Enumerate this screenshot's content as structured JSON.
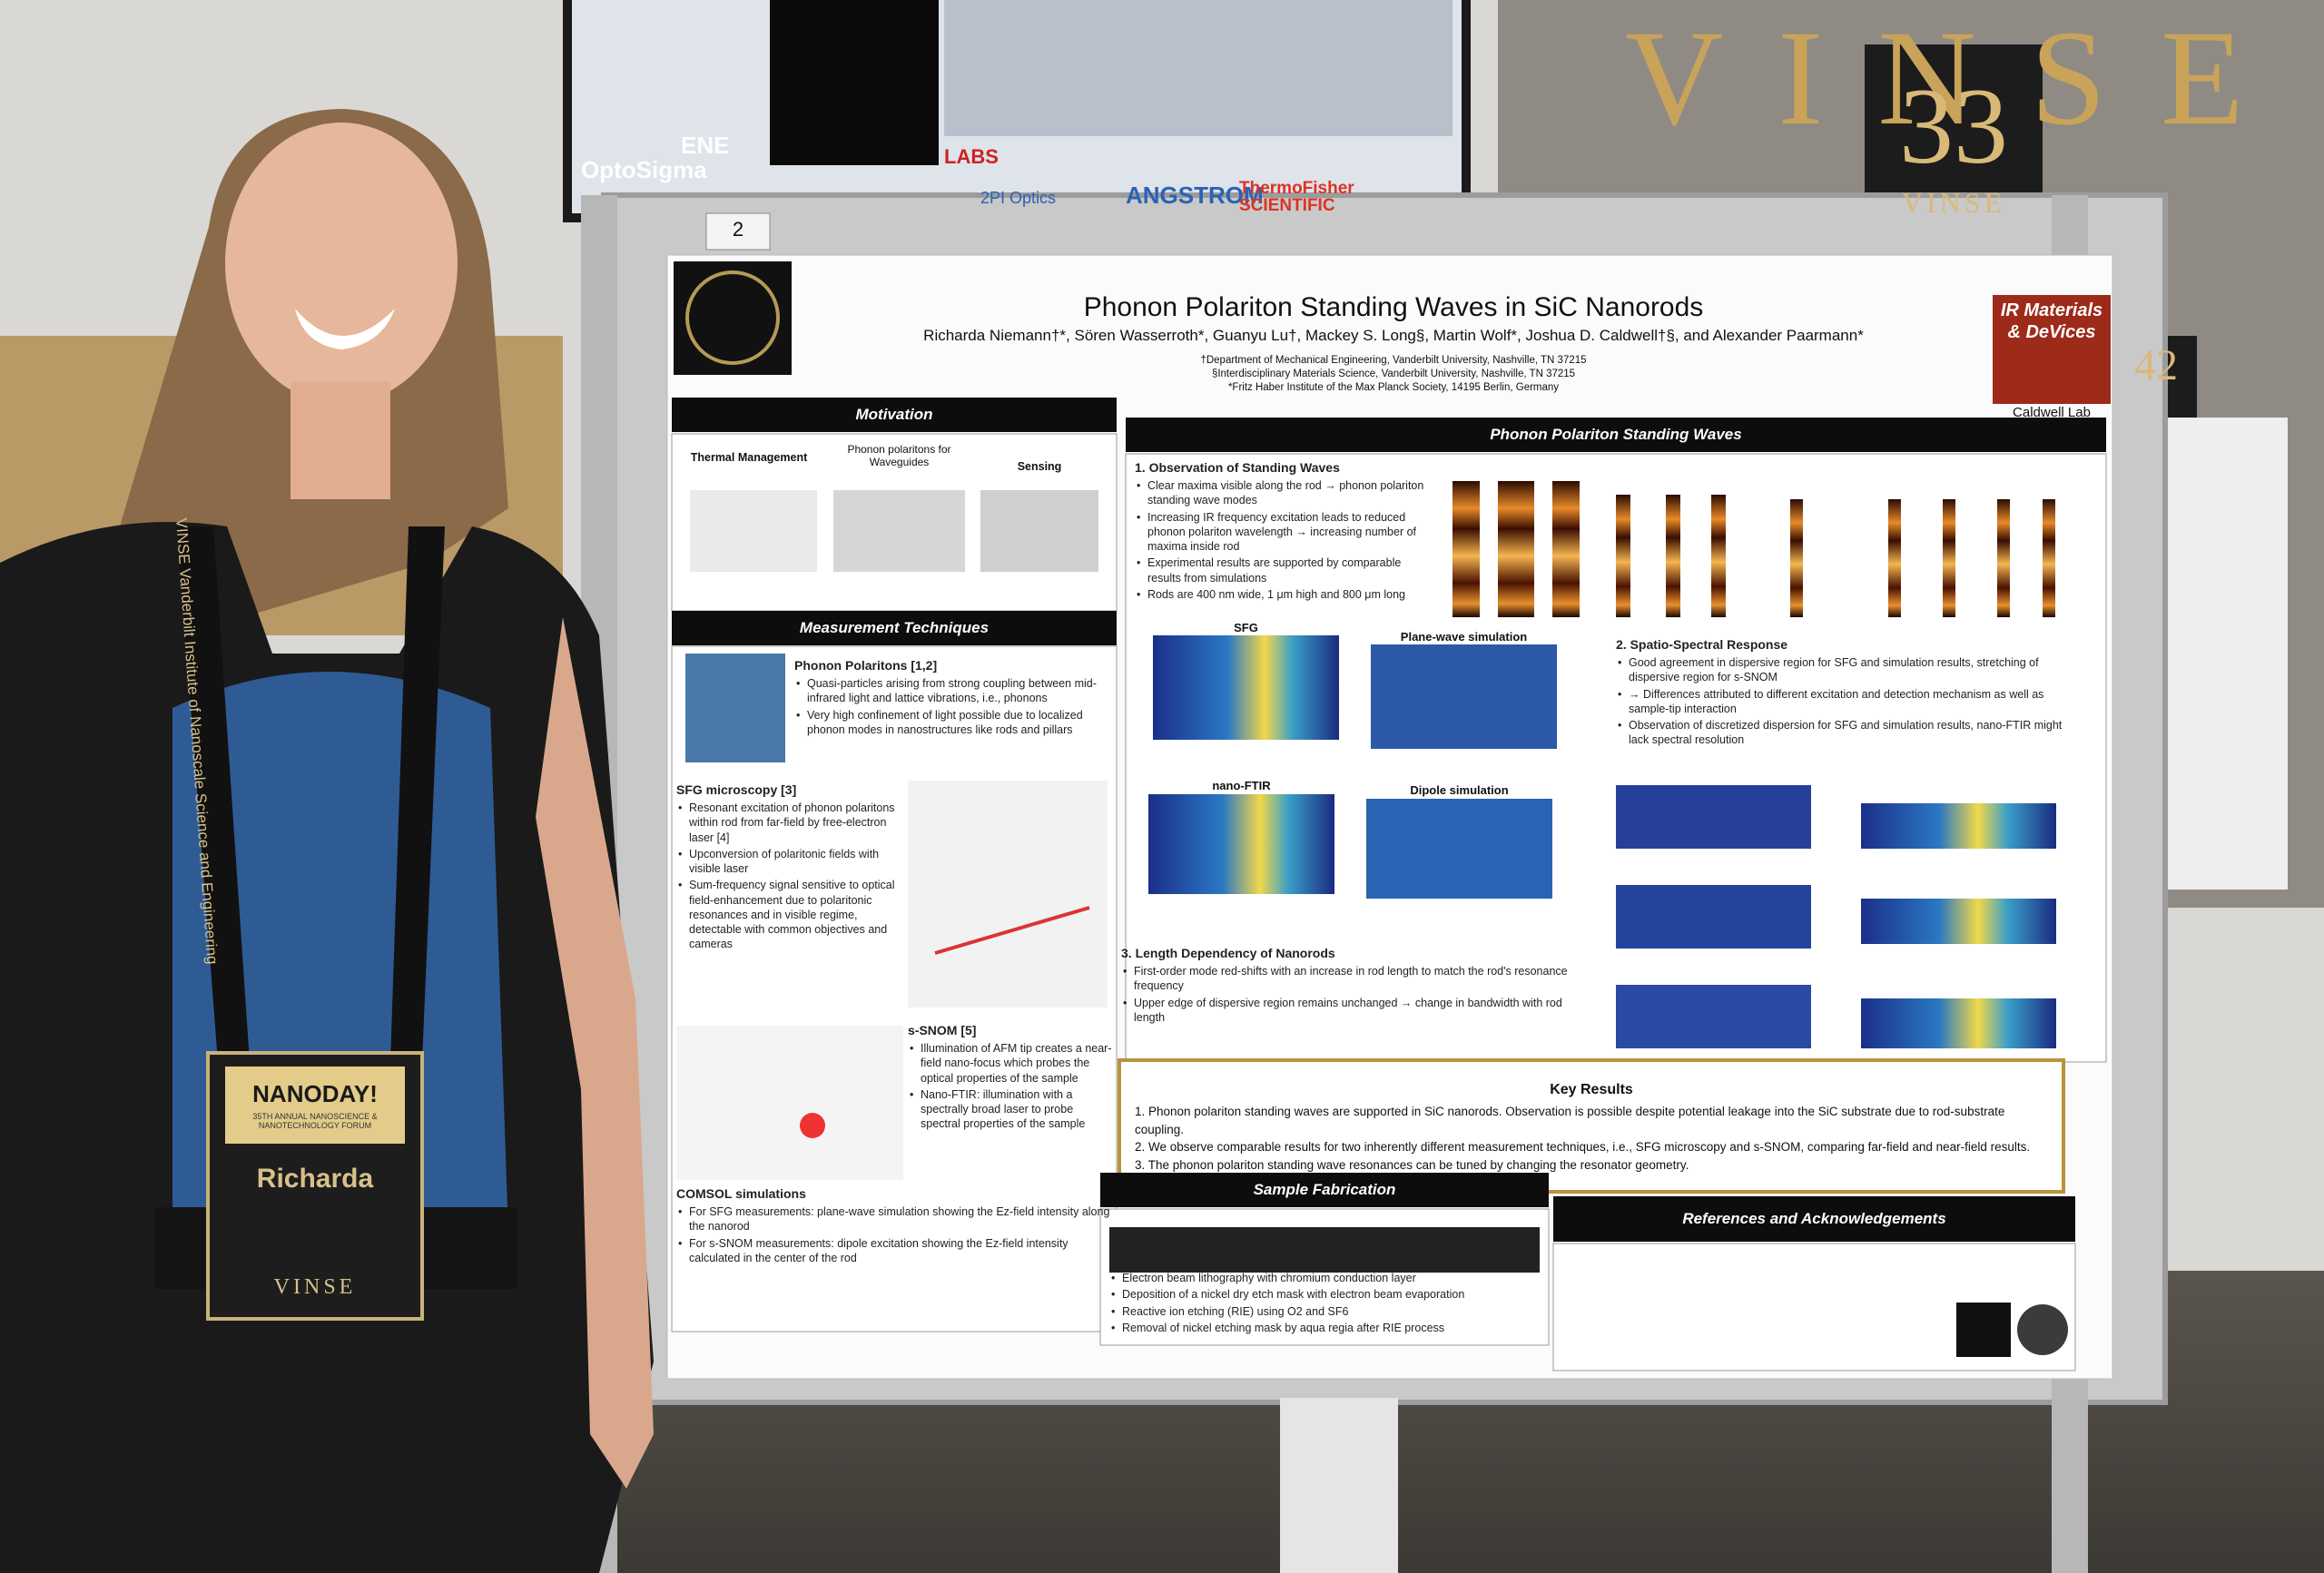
{
  "background": {
    "screen_brands": [
      "OptoSigma",
      "ENE",
      "LABS",
      "2PI Optics",
      "ANGSTROM",
      "ThermoFisher SCIENTIFIC"
    ],
    "wall_sign": "VINSE",
    "booth_number": "33",
    "booth_label": "VINSE",
    "side_booth": "42"
  },
  "poster": {
    "board_number": "2",
    "title": "Phonon Polariton Standing Waves in SiC Nanorods",
    "authors": "Richarda Niemann†*, Sören Wasserroth*, Guanyu Lu†, Mackey S. Long§, Martin Wolf*, Joshua D. Caldwell†§, and Alexander Paarmann*",
    "affiliations": [
      "†Department of Mechanical Engineering, Vanderbilt University, Nashville, TN 37215",
      "§Interdisciplinary Materials Science, Vanderbilt University, Nashville, TN 37215",
      "*Fritz Haber Institute of the Max Planck Society, 14195 Berlin, Germany"
    ],
    "lab_logo": "IR Materials & DeVices",
    "lab": "Caldwell Lab",
    "motivation": {
      "heading": "Motivation",
      "labels": [
        "Thermal Management",
        "Phonon polaritons for Waveguides",
        "Sensing"
      ]
    },
    "techniques": {
      "heading": "Measurement Techniques",
      "blocks": [
        {
          "title": "Phonon Polaritons [1,2]",
          "items": [
            "Quasi-particles arising from strong coupling between mid-infrared light and lattice vibrations, i.e., phonons",
            "Very high confinement of light possible due to localized phonon modes in nanostructures like rods and pillars"
          ]
        },
        {
          "title": "SFG microscopy [3]",
          "items": [
            "Resonant excitation of phonon polaritons within rod from far-field by free-electron laser [4]",
            "Upconversion of polaritonic fields with visible laser",
            "Sum-frequency signal sensitive to optical field-enhancement due to polaritonic resonances and in visible regime, detectable with common objectives and cameras"
          ]
        },
        {
          "title": "s-SNOM [5]",
          "items": [
            "Illumination of AFM tip creates a near-field nano-focus which probes the optical properties of the sample",
            "Nano-FTIR: illumination with a spectrally broad laser to probe spectral properties of the sample"
          ]
        },
        {
          "title": "COMSOL simulations",
          "items": [
            "For SFG measurements: plane-wave simulation showing the Ez-field intensity along the nanorod",
            "For s-SNOM measurements: dipole excitation showing the Ez-field intensity calculated in the center of the rod"
          ]
        }
      ]
    },
    "standing": {
      "heading": "Phonon Polariton Standing Waves",
      "blocks": [
        {
          "title": "1. Observation of Standing Waves",
          "items": [
            "Clear maxima visible along the rod → phonon polariton standing wave modes",
            "Increasing IR frequency excitation leads to reduced phonon polariton wavelength → increasing number of maxima inside rod",
            "Experimental results are supported by comparable results from simulations",
            "Rods are 400 nm wide, 1 μm high and 800 μm long"
          ]
        },
        {
          "title": "2. Spatio-Spectral Response",
          "items": [
            "Good agreement in dispersive region for SFG and simulation results, stretching of dispersive region for s-SNOM",
            "→ Differences attributed to different excitation and detection mechanism as well as sample-tip interaction",
            "Observation of discretized dispersion for SFG and simulation results, nano-FTIR might lack spectral resolution"
          ]
        },
        {
          "title": "3. Length Dependency of Nanorods",
          "items": [
            "First-order mode red-shifts with an increase in rod length to match the rod's resonance frequency",
            "Upper edge of dispersive region remains unchanged → change in bandwidth with rod length"
          ]
        }
      ],
      "panel_titles": [
        "SFG",
        "Plane-wave simulation",
        "nano-FTIR",
        "Dipole simulation"
      ]
    },
    "key_results": {
      "heading": "Key Results",
      "items": [
        "1. Phonon polariton standing waves are supported in SiC nanorods. Observation is possible despite potential leakage into the SiC substrate due to rod-substrate coupling.",
        "2. We observe comparable results for two inherently different measurement techniques, i.e., SFG microscopy and s-SNOM, comparing far-field and near-field results.",
        "3. The phonon polariton standing wave resonances can be tuned by changing the resonator geometry."
      ]
    },
    "fabrication": {
      "heading": "Sample Fabrication",
      "items": [
        "Electron beam lithography with chromium conduction layer",
        "Deposition of a nickel dry etch mask with electron beam evaporation",
        "Reactive ion etching (RIE) using O2 and SF6",
        "Removal of nickel etching mask by aqua regia after RIE process"
      ]
    },
    "references": {
      "heading": "References and Acknowledgements"
    }
  },
  "lanyard": "VINSE Vanderbilt Institute of Nanoscale Science and Engineering",
  "badge": {
    "event": "NANODAY!",
    "subtitle": "35TH ANNUAL NANOSCIENCE & NANOTECHNOLOGY FORUM",
    "name": "Richarda",
    "org": "VINSE"
  }
}
